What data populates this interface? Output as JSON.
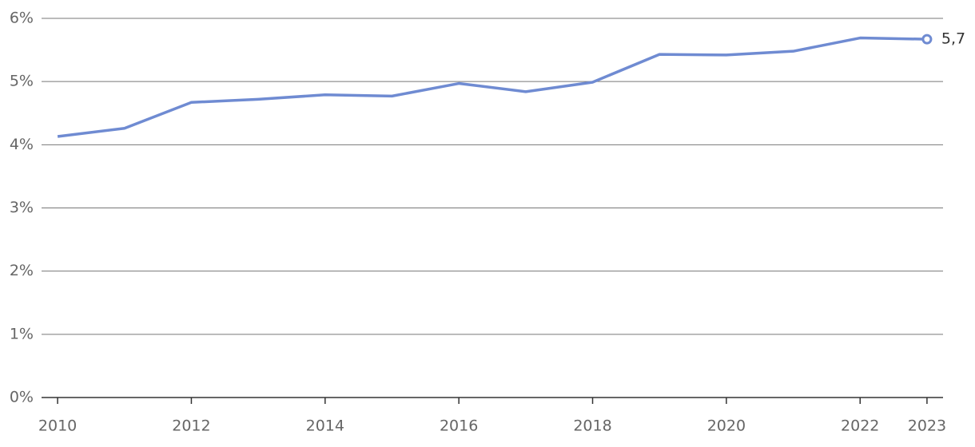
{
  "chart_data": {
    "type": "line",
    "x": [
      2010,
      2011,
      2012,
      2013,
      2014,
      2015,
      2016,
      2017,
      2018,
      2019,
      2020,
      2021,
      2022,
      2023
    ],
    "values": [
      4.13,
      4.26,
      4.67,
      4.72,
      4.79,
      4.77,
      4.97,
      4.84,
      4.99,
      5.43,
      5.42,
      5.48,
      5.69,
      5.67
    ],
    "value_labels": [
      null,
      null,
      null,
      null,
      null,
      null,
      null,
      null,
      null,
      null,
      null,
      null,
      null,
      "5,7"
    ],
    "color": "#6f8bd2",
    "xlim": [
      2009.76,
      2023.24
    ],
    "xticks": [
      2010,
      2012,
      2014,
      2016,
      2018,
      2020,
      2022,
      2023
    ],
    "ylim": [
      0,
      6
    ],
    "yticks": [
      {
        "value": 0,
        "label": "0%"
      },
      {
        "value": 1,
        "label": "1%"
      },
      {
        "value": 2,
        "label": "2%"
      },
      {
        "value": 3,
        "label": "3%"
      },
      {
        "value": 4,
        "label": "4%"
      },
      {
        "value": 5,
        "label": "5%"
      },
      {
        "value": 6,
        "label": "6%"
      }
    ],
    "grid": true
  }
}
